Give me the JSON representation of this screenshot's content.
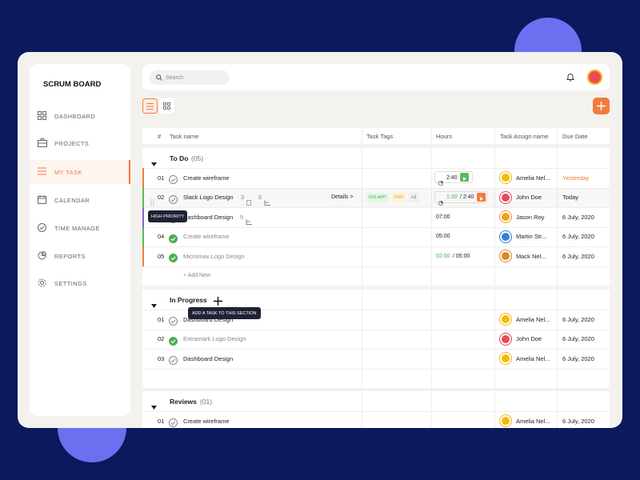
{
  "sidebar": {
    "title": "SCRUM BOARD",
    "items": [
      "DASHBOARD",
      "PROJECTS",
      "MY TASK",
      "CALENDAR",
      "TIME MANAGE",
      "REPORTS",
      "SETTINGS"
    ]
  },
  "search": "Search",
  "columns": [
    "#",
    "Task name",
    "Task Tags",
    "Hours",
    "Task Assign name",
    "Due Date"
  ],
  "sections": [
    {
      "name": "To Do",
      "count": "(05)",
      "add": "+ Add New",
      "tasks": [
        {
          "num": "01",
          "name": "Create wireframe",
          "hours": "2:40",
          "timer": "#5cb85c",
          "assignee": "Amelia Nel...",
          "avatar": "#f5b90a",
          "due": "Yesterday",
          "overdue": true,
          "color": "#f47b3a",
          "done": false
        },
        {
          "num": "02",
          "name": "Slack Logo Design",
          "subtasks": "3",
          "links": "5",
          "details": "Details >",
          "tags": [
            "IOS APP",
            "PHP",
            "+2"
          ],
          "hours": "1:30",
          "hours_total": "/ 2:40",
          "timer": "#f47b3a",
          "assignee": "John Doe",
          "avatar": "#e94a5a",
          "due": "Today",
          "color": "#5cb85c",
          "done": false
        },
        {
          "name": "Dashboard Design",
          "links": "5",
          "tooltip": "HIGH PRIORITY",
          "hours": "07:00",
          "assignee": "Jason Roy",
          "avatar": "#f0a020",
          "due": "6 July, 2020",
          "color": "#8a63d2",
          "done": false
        },
        {
          "num": "04",
          "name": "Create wireframe",
          "hours": "05:00",
          "assignee": "Martin Str...",
          "avatar": "#3b7dd8",
          "due": "6 July, 2020",
          "color": "#5cb85c",
          "done": true
        },
        {
          "num": "05",
          "name": "Micromax Logo Design",
          "hours": "02:00",
          "hours_total": "/ 05:00",
          "assignee": "Mack Nel...",
          "avatar": "#d98a2b",
          "due": "6 July, 2020",
          "color": "#f47b3a",
          "done": true
        }
      ]
    },
    {
      "name": "In Progress",
      "tooltip": "ADD A TASK TO THIS SECTION",
      "tasks": [
        {
          "num": "01",
          "name": "Dashboard Design",
          "assignee": "Amelia Nel...",
          "avatar": "#f5b90a",
          "due": "6 July, 2020",
          "done": false
        },
        {
          "num": "02",
          "name": "Extramark Logo Design",
          "assignee": "John Doe",
          "avatar": "#e94a5a",
          "due": "6 July, 2020",
          "done": true
        },
        {
          "num": "03",
          "name": "Dashboard Design",
          "assignee": "Amelia Nel...",
          "avatar": "#f5b90a",
          "due": "6 July, 2020",
          "done": false
        }
      ]
    },
    {
      "name": "Reviews",
      "count": "(01)",
      "tasks": [
        {
          "num": "01",
          "name": "Create wireframe",
          "assignee": "Amelia Nel...",
          "avatar": "#f5b90a",
          "due": "6 July, 2020",
          "done": false
        }
      ]
    }
  ]
}
